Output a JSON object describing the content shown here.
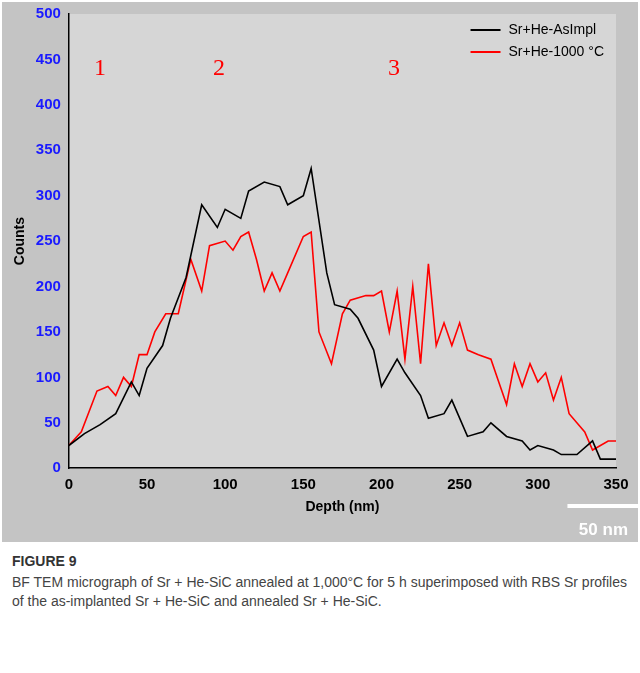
{
  "chart_data": {
    "type": "line",
    "x_label": "Depth (nm)",
    "y_label": "Counts",
    "xlim": [
      0,
      350
    ],
    "xticks": [
      0,
      50,
      100,
      150,
      200,
      250,
      300,
      350
    ],
    "ylim": [
      0,
      500
    ],
    "yticks": [
      0,
      50,
      100,
      150,
      200,
      250,
      300,
      350,
      400,
      450,
      500
    ],
    "grid": false,
    "legend": "upper right",
    "series": [
      {
        "name": "Sr+He-AsImpl",
        "color": "#000000",
        "x": [
          0,
          10,
          20,
          30,
          40,
          45,
          50,
          60,
          65,
          75,
          85,
          95,
          100,
          110,
          115,
          125,
          135,
          140,
          150,
          155,
          165,
          170,
          180,
          185,
          195,
          200,
          210,
          215,
          225,
          230,
          240,
          245,
          255,
          265,
          270,
          280,
          290,
          295,
          300,
          310,
          315,
          325,
          335,
          340,
          350
        ],
        "values": [
          25,
          38,
          48,
          60,
          95,
          80,
          110,
          135,
          165,
          210,
          290,
          265,
          285,
          275,
          305,
          315,
          310,
          290,
          300,
          330,
          215,
          180,
          175,
          165,
          130,
          90,
          120,
          105,
          80,
          55,
          60,
          75,
          35,
          40,
          50,
          35,
          30,
          20,
          25,
          20,
          15,
          15,
          30,
          10,
          10
        ]
      },
      {
        "name": "Sr+He-1000 °C",
        "color": "#ff0000",
        "x": [
          0,
          8,
          18,
          25,
          30,
          35,
          40,
          45,
          50,
          55,
          62,
          70,
          78,
          85,
          90,
          100,
          105,
          110,
          115,
          120,
          125,
          130,
          135,
          140,
          150,
          155,
          160,
          168,
          175,
          180,
          190,
          195,
          200,
          205,
          210,
          215,
          220,
          225,
          230,
          235,
          240,
          245,
          250,
          255,
          262,
          270,
          275,
          280,
          285,
          290,
          295,
          300,
          305,
          310,
          315,
          320,
          330,
          335,
          345,
          350
        ],
        "values": [
          25,
          40,
          85,
          90,
          80,
          100,
          90,
          125,
          125,
          150,
          170,
          170,
          230,
          195,
          245,
          250,
          240,
          255,
          260,
          230,
          195,
          215,
          195,
          215,
          255,
          260,
          150,
          115,
          170,
          185,
          190,
          190,
          195,
          150,
          195,
          120,
          200,
          115,
          225,
          135,
          160,
          135,
          160,
          130,
          125,
          120,
          95,
          70,
          115,
          90,
          115,
          95,
          105,
          75,
          100,
          60,
          40,
          20,
          30,
          30
        ]
      }
    ],
    "annotations": [
      {
        "text": "1",
        "x": 20,
        "y": 440
      },
      {
        "text": "2",
        "x": 96,
        "y": 440
      },
      {
        "text": "3",
        "x": 208,
        "y": 440
      }
    ],
    "scale_bar_label": "50 nm"
  },
  "caption": {
    "label": "FIGURE 9",
    "text": "BF TEM micrograph of Sr + He-SiC annealed at 1,000°C for 5 h superimposed with RBS Sr profiles of the as-implanted Sr + He-SiC and annealed Sr + He-SiC."
  }
}
